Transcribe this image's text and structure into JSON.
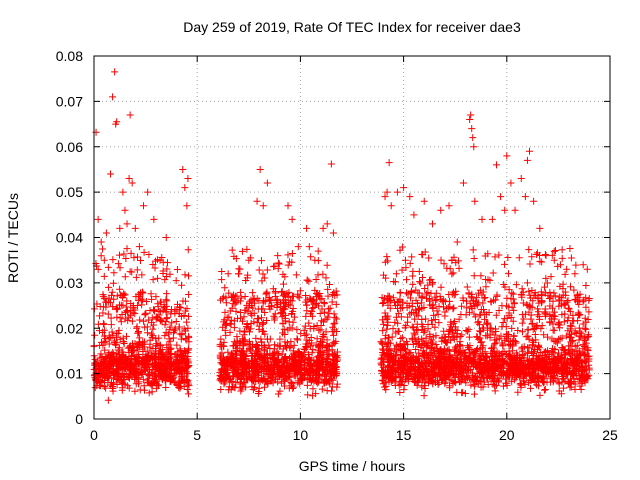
{
  "chart_data": {
    "type": "scatter",
    "title": "Day 259 of 2019, Rate Of TEC Index for receiver dae3",
    "xlabel": "GPS time / hours",
    "ylabel": "ROTI / TECUs",
    "xlim": [
      0,
      25
    ],
    "ylim": [
      0,
      0.08
    ],
    "x_ticks": [
      "0",
      "5",
      "10",
      "15",
      "20",
      "25"
    ],
    "y_ticks": [
      "0",
      "0.01",
      "0.02",
      "0.03",
      "0.04",
      "0.05",
      "0.06",
      "0.07",
      "0.08"
    ],
    "grid": true,
    "marker": "+",
    "color": "#ff0000",
    "segments_hours": [
      [
        0.0,
        4.6
      ],
      [
        6.1,
        11.8
      ],
      [
        13.9,
        24.0
      ]
    ],
    "series": [
      {
        "points": [
          [
            0.1,
            0.0632
          ],
          [
            0.2,
            0.044
          ],
          [
            0.35,
            0.039
          ],
          [
            0.5,
            0.035
          ],
          [
            0.6,
            0.041
          ],
          [
            0.7,
            0.029
          ],
          [
            0.8,
            0.054
          ],
          [
            0.9,
            0.071
          ],
          [
            1.0,
            0.0765
          ],
          [
            1.05,
            0.065
          ],
          [
            1.1,
            0.0655
          ],
          [
            1.25,
            0.042
          ],
          [
            1.4,
            0.05
          ],
          [
            1.5,
            0.046
          ],
          [
            1.6,
            0.043
          ],
          [
            1.7,
            0.053
          ],
          [
            1.75,
            0.067
          ],
          [
            1.85,
            0.052
          ],
          [
            2.0,
            0.042
          ],
          [
            2.2,
            0.038
          ],
          [
            2.4,
            0.047
          ],
          [
            2.6,
            0.05
          ],
          [
            2.9,
            0.044
          ],
          [
            3.2,
            0.035
          ],
          [
            3.5,
            0.04
          ],
          [
            4.3,
            0.055
          ],
          [
            4.4,
            0.051
          ],
          [
            4.5,
            0.047
          ],
          [
            4.55,
            0.053
          ],
          [
            6.5,
            0.032
          ],
          [
            7.0,
            0.032
          ],
          [
            7.5,
            0.035
          ],
          [
            7.9,
            0.048
          ],
          [
            8.05,
            0.055
          ],
          [
            8.2,
            0.047
          ],
          [
            8.4,
            0.052
          ],
          [
            8.9,
            0.036
          ],
          [
            9.4,
            0.047
          ],
          [
            9.6,
            0.044
          ],
          [
            9.9,
            0.038
          ],
          [
            10.3,
            0.042
          ],
          [
            10.7,
            0.035
          ],
          [
            11.1,
            0.042
          ],
          [
            11.3,
            0.043
          ],
          [
            11.5,
            0.0562
          ],
          [
            11.6,
            0.041
          ],
          [
            14.1,
            0.049
          ],
          [
            14.2,
            0.05
          ],
          [
            14.3,
            0.0565
          ],
          [
            14.4,
            0.047
          ],
          [
            14.7,
            0.05
          ],
          [
            15.0,
            0.051
          ],
          [
            15.3,
            0.049
          ],
          [
            15.5,
            0.045
          ],
          [
            16.0,
            0.048
          ],
          [
            16.4,
            0.043
          ],
          [
            16.8,
            0.046
          ],
          [
            17.2,
            0.047
          ],
          [
            17.6,
            0.039
          ],
          [
            17.9,
            0.052
          ],
          [
            18.2,
            0.066
          ],
          [
            18.25,
            0.067
          ],
          [
            18.3,
            0.064
          ],
          [
            18.35,
            0.062
          ],
          [
            18.4,
            0.06
          ],
          [
            18.45,
            0.048
          ],
          [
            18.8,
            0.044
          ],
          [
            19.3,
            0.044
          ],
          [
            19.5,
            0.056
          ],
          [
            19.7,
            0.049
          ],
          [
            19.9,
            0.046
          ],
          [
            20.0,
            0.058
          ],
          [
            20.2,
            0.052
          ],
          [
            20.4,
            0.046
          ],
          [
            20.7,
            0.053
          ],
          [
            20.9,
            0.049
          ],
          [
            21.0,
            0.057
          ],
          [
            21.1,
            0.059
          ],
          [
            21.3,
            0.048
          ],
          [
            21.6,
            0.042
          ],
          [
            21.9,
            0.036
          ],
          [
            22.3,
            0.035
          ],
          [
            22.6,
            0.034
          ],
          [
            22.9,
            0.033
          ],
          [
            23.3,
            0.032
          ],
          [
            23.7,
            0.034
          ],
          [
            23.9,
            0.033
          ]
        ]
      }
    ]
  }
}
